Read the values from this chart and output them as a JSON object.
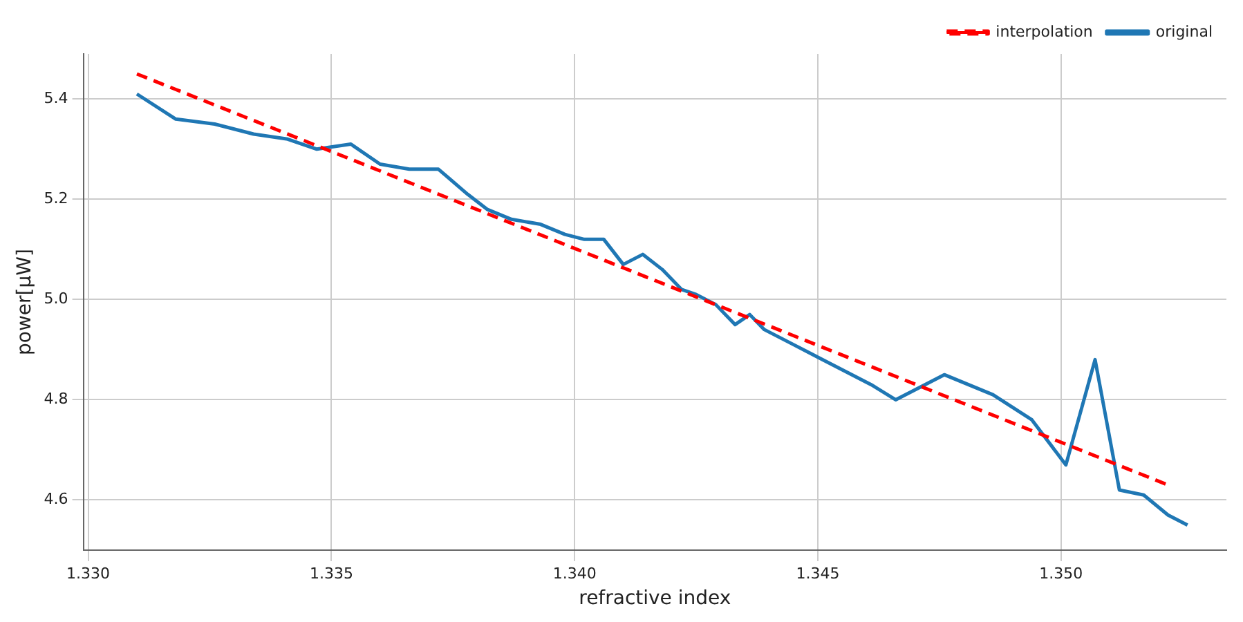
{
  "chart_data": {
    "type": "line",
    "xlabel": "refractive index",
    "ylabel": "power[μW]",
    "xlim": [
      1.3299,
      1.3534
    ],
    "ylim": [
      4.5,
      5.49
    ],
    "xticks": [
      {
        "value": 1.33,
        "label": "1.330"
      },
      1.335,
      {
        "value": 1.34,
        "label": "1.340"
      },
      1.345,
      {
        "value": 1.35,
        "label": "1.350"
      }
    ],
    "yticks": [
      4.6,
      4.8,
      {
        "value": 5,
        "label": "5.0"
      },
      5.2,
      5.4
    ],
    "grid": true,
    "legend": "top right",
    "marker": "none",
    "series": [
      {
        "name": "interpolation",
        "color": "#ff0000",
        "line_style": "dashed",
        "x": [
          1.331,
          1.3522
        ],
        "values": [
          5.45,
          4.63
        ]
      },
      {
        "name": "original",
        "color": "#1f77b4",
        "line_style": "solid",
        "x": [
          1.331,
          1.3318,
          1.3326,
          1.3334,
          1.3341,
          1.3347,
          1.3354,
          1.336,
          1.3366,
          1.3372,
          1.3378,
          1.3382,
          1.3387,
          1.3393,
          1.3398,
          1.3402,
          1.3406,
          1.341,
          1.3414,
          1.3418,
          1.3422,
          1.3425,
          1.3429,
          1.3433,
          1.3436,
          1.3439,
          1.3445,
          1.3451,
          1.3455,
          1.3461,
          1.3466,
          1.3476,
          1.3486,
          1.3494,
          1.3501,
          1.3507,
          1.3512,
          1.3517,
          1.3522,
          1.3526
        ],
        "values": [
          5.41,
          5.36,
          5.35,
          5.33,
          5.32,
          5.3,
          5.31,
          5.27,
          5.26,
          5.26,
          5.21,
          5.18,
          5.16,
          5.15,
          5.13,
          5.12,
          5.12,
          5.07,
          5.09,
          5.06,
          5.02,
          5.01,
          4.99,
          4.95,
          4.97,
          4.94,
          4.91,
          4.88,
          4.86,
          4.83,
          4.8,
          4.85,
          4.81,
          4.76,
          4.67,
          4.88,
          4.62,
          4.61,
          4.57,
          4.55
        ]
      }
    ]
  }
}
